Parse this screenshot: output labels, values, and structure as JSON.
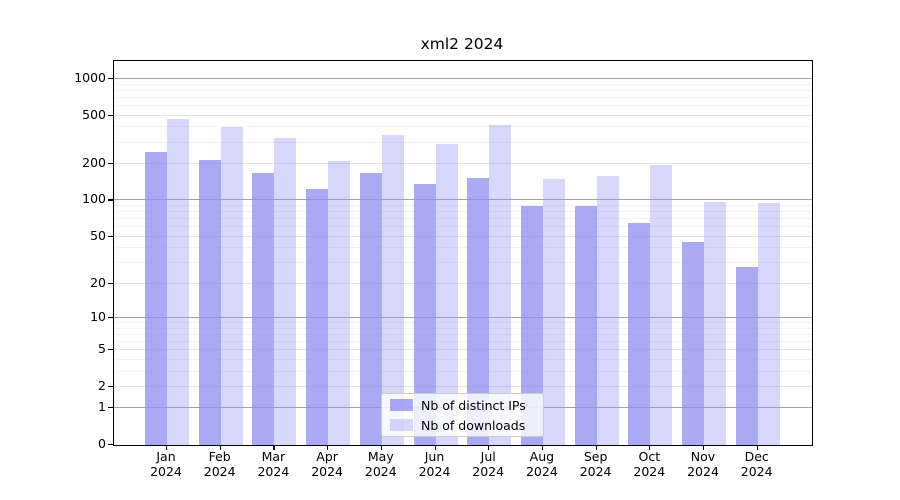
{
  "chart_data": {
    "type": "bar",
    "title": "xml2 2024",
    "categories": [
      "Jan 2024",
      "Feb 2024",
      "Mar 2024",
      "Apr 2024",
      "May 2024",
      "Jun 2024",
      "Jul 2024",
      "Aug 2024",
      "Sep 2024",
      "Oct 2024",
      "Nov 2024",
      "Dec 2024"
    ],
    "series": [
      {
        "name": "Nb of distinct IPs",
        "color": "rgba(140,140,240,0.75)",
        "values": [
          250,
          215,
          170,
          125,
          168,
          137,
          153,
          90,
          90,
          65,
          45,
          28
        ]
      },
      {
        "name": "Nb of downloads",
        "color": "rgba(140,140,240,0.35)",
        "values": [
          470,
          400,
          330,
          210,
          350,
          295,
          420,
          150,
          158,
          195,
          98,
          95
        ]
      }
    ],
    "xlabel": "",
    "ylabel": "",
    "yscale": "log1p",
    "ylim": [
      0,
      1400
    ],
    "ytick_labels": [
      1000,
      500,
      200,
      100,
      50,
      20,
      10,
      5,
      2,
      1,
      0
    ],
    "grid": {
      "enabled": true,
      "major_values": [
        1,
        10,
        100,
        1000
      ],
      "minor_labeled_values": [
        2,
        5,
        20,
        50,
        200,
        500
      ],
      "minor_unlabeled_values": [
        3,
        4,
        6,
        7,
        8,
        9,
        30,
        40,
        60,
        70,
        80,
        90,
        300,
        400,
        600,
        700,
        800,
        900
      ],
      "major_color": "#a3a3a3",
      "minor_color": "#e4e4e4",
      "faint_color": "#f2f2f2"
    },
    "legend": {
      "position": "lower center",
      "frame_color": "#cccccc"
    }
  }
}
